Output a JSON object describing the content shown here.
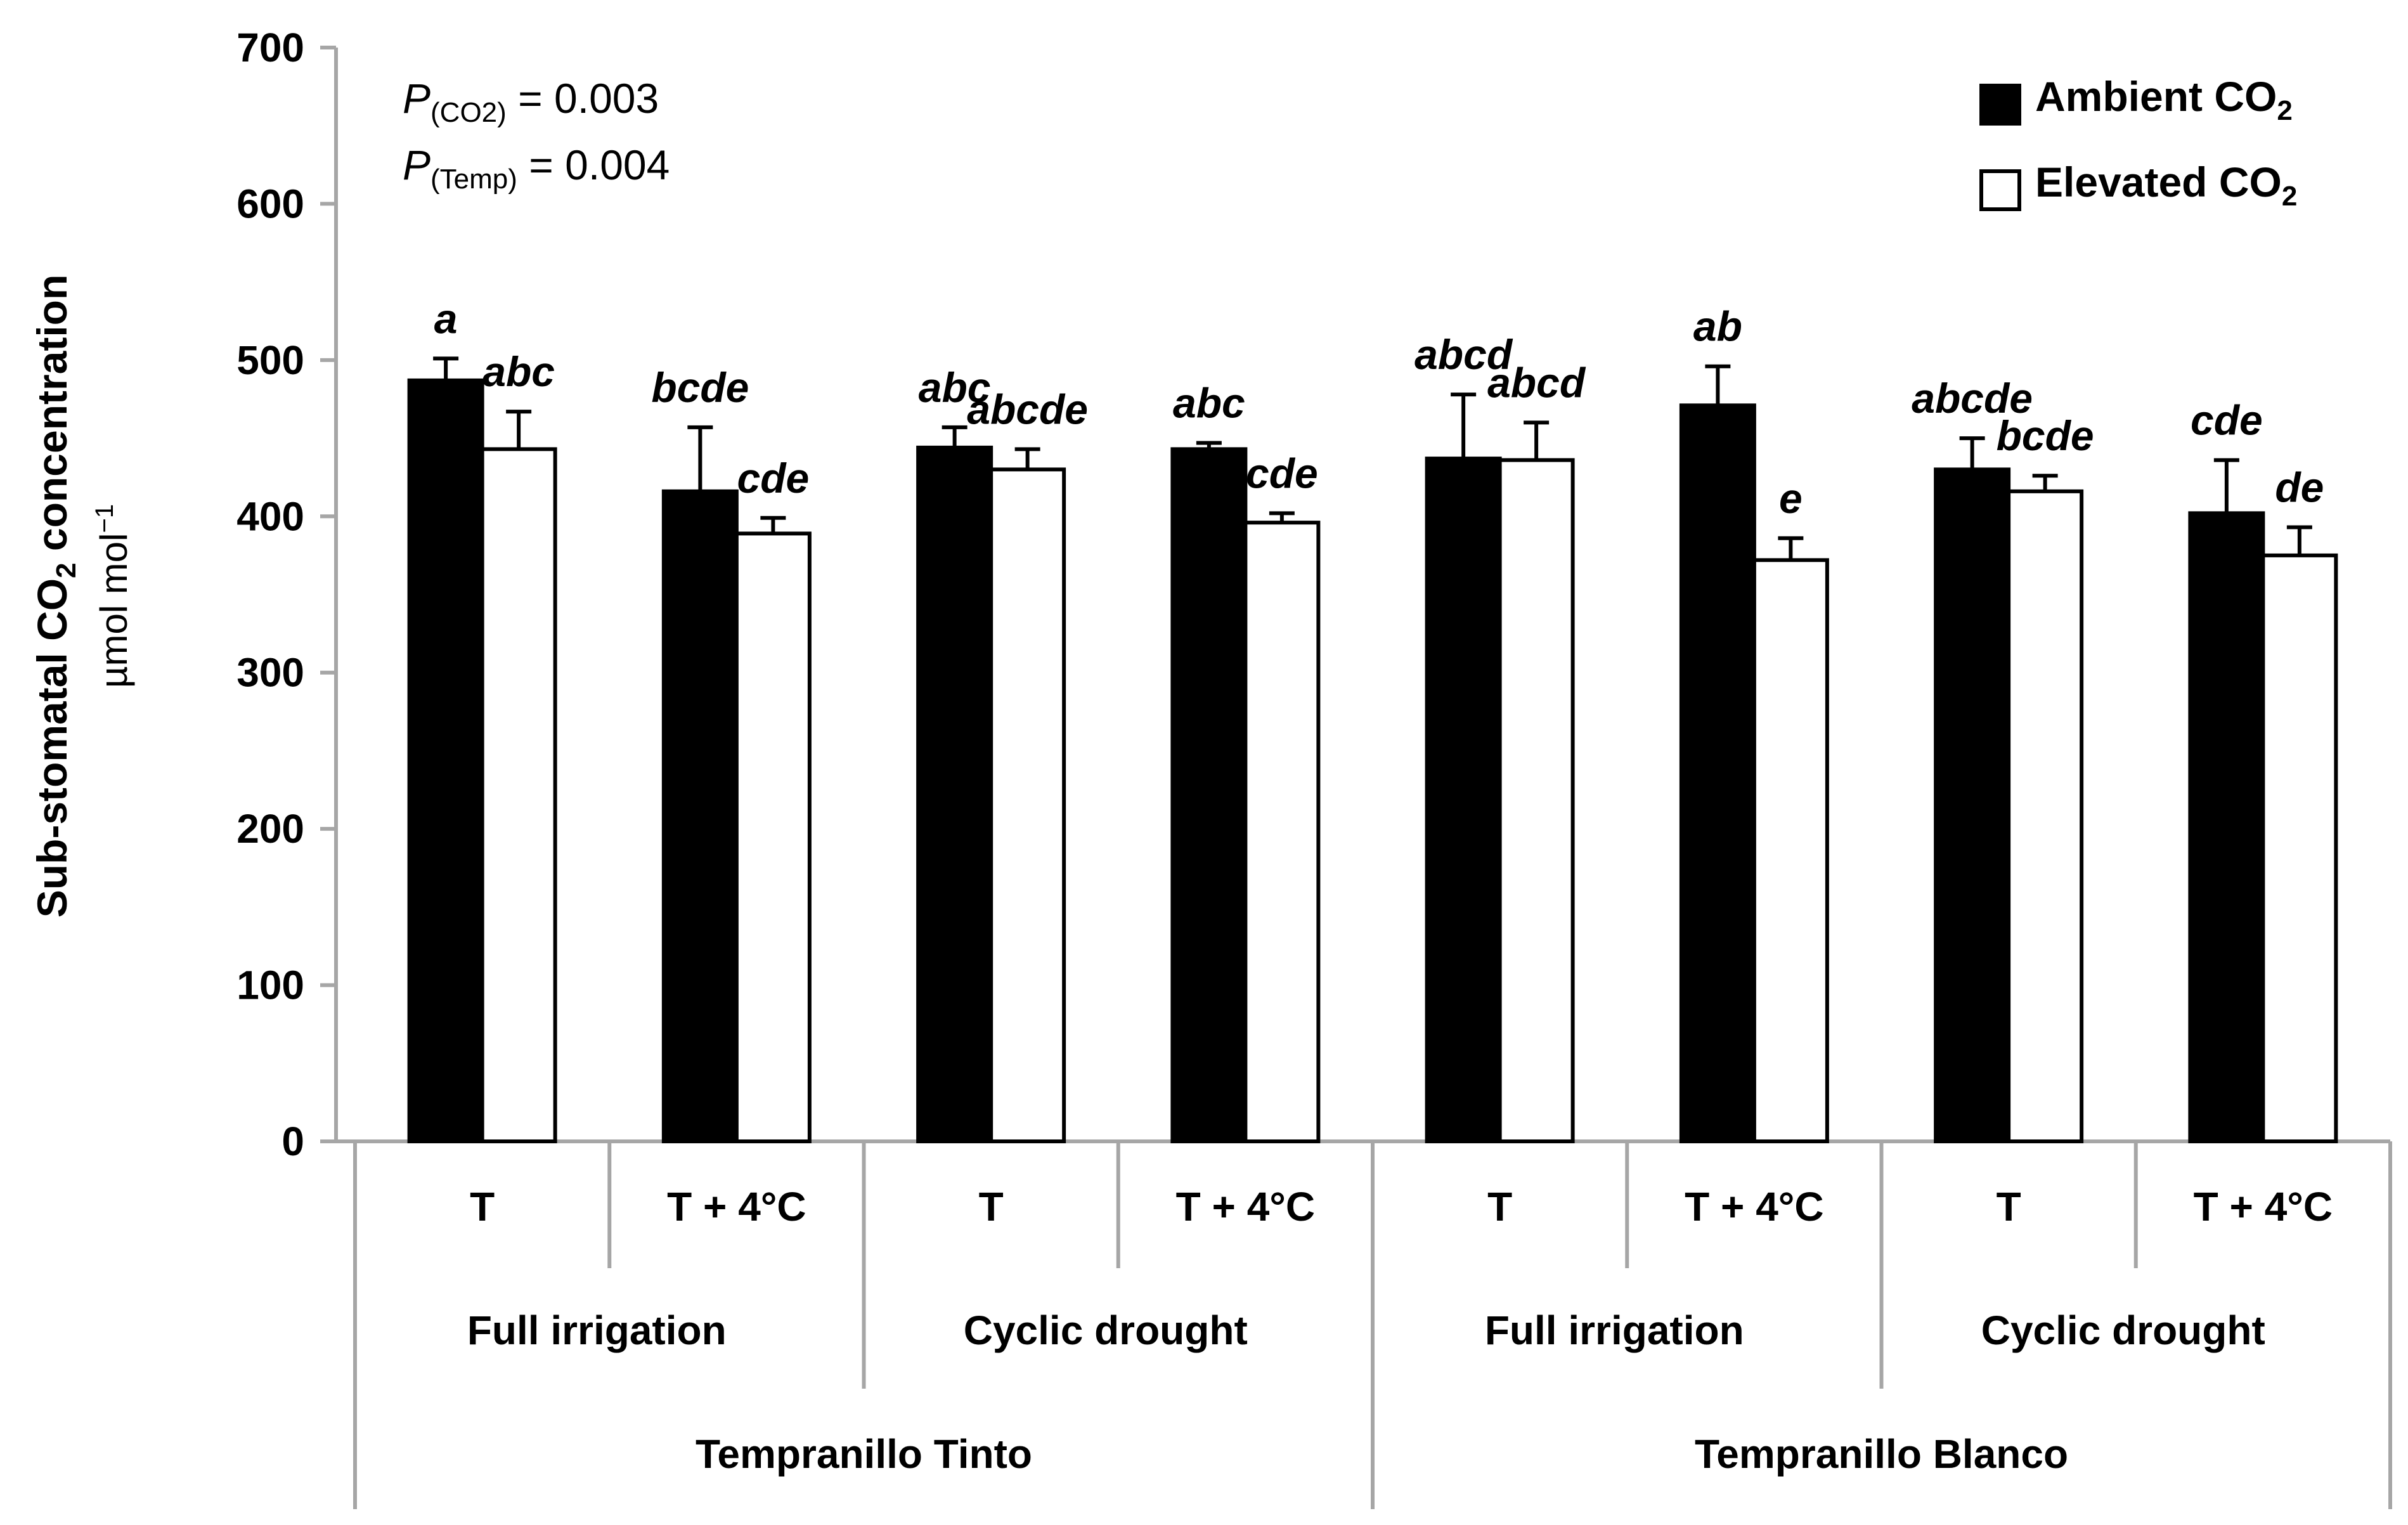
{
  "chart_data": {
    "type": "bar",
    "ylabel_main": "Sub-stomatal CO",
    "ylabel_sub": "2",
    "ylabel_tail": " concentration",
    "yunit": "µmol mol",
    "yunit_sup": "−1",
    "ylim": [
      0,
      700
    ],
    "yticks": [
      0,
      100,
      200,
      300,
      400,
      500,
      600,
      700
    ],
    "stats": [
      {
        "p": "P",
        "sub": "(CO2)",
        "text": " = 0.003"
      },
      {
        "p": "P",
        "sub": "(Temp)",
        "text": " = 0.004"
      }
    ],
    "legend": [
      {
        "label": "Ambient CO",
        "sub": "2",
        "color": "#000000"
      },
      {
        "label": "Elevated CO",
        "sub": "2",
        "color": "#ffffff"
      }
    ],
    "legend_position": "top-right",
    "groups": [
      {
        "temp": "T",
        "ambient": 487,
        "ambient_err": 14,
        "elevated": 443,
        "elevated_err": 24,
        "ambient_sig": "a",
        "elevated_sig": "abc"
      },
      {
        "temp": "T + 4°C",
        "ambient": 416,
        "ambient_err": 41,
        "elevated": 389,
        "elevated_err": 10,
        "ambient_sig": "bcde",
        "elevated_sig": "cde"
      },
      {
        "temp": "T",
        "ambient": 444,
        "ambient_err": 13,
        "elevated": 430,
        "elevated_err": 13,
        "ambient_sig": "abc",
        "elevated_sig": "abcde"
      },
      {
        "temp": "T + 4°C",
        "ambient": 443,
        "ambient_err": 4,
        "elevated": 396,
        "elevated_err": 6,
        "ambient_sig": "abc",
        "elevated_sig": "cde"
      },
      {
        "temp": "T",
        "ambient": 437,
        "ambient_err": 41,
        "elevated": 436,
        "elevated_err": 24,
        "ambient_sig": "abcd",
        "elevated_sig": "abcd"
      },
      {
        "temp": "T + 4°C",
        "ambient": 471,
        "ambient_err": 25,
        "elevated": 372,
        "elevated_err": 14,
        "ambient_sig": "ab",
        "elevated_sig": "e"
      },
      {
        "temp": "T",
        "ambient": 430,
        "ambient_err": 20,
        "elevated": 416,
        "elevated_err": 10,
        "ambient_sig": "abcde",
        "elevated_sig": "bcde"
      },
      {
        "temp": "T + 4°C",
        "ambient": 402,
        "ambient_err": 34,
        "elevated": 375,
        "elevated_err": 18,
        "ambient_sig": "cde",
        "elevated_sig": "de"
      }
    ],
    "irrigation": [
      "Full irrigation",
      "Cyclic drought",
      "Full irrigation",
      "Cyclic drought"
    ],
    "cultivars": [
      "Tempranillo Tinto",
      "Tempranillo Blanco"
    ]
  }
}
